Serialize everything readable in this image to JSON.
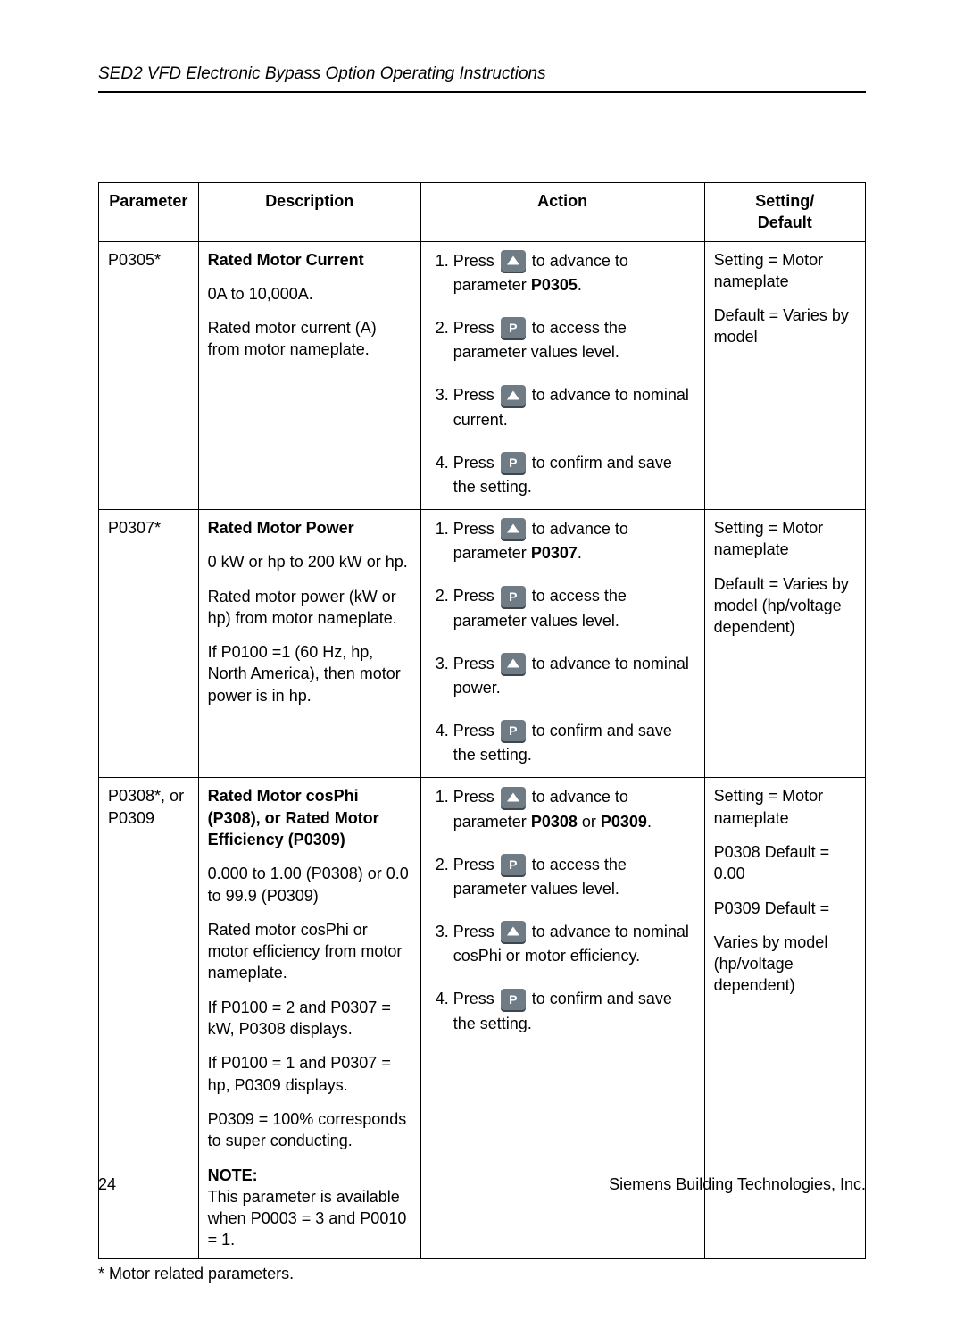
{
  "header": {
    "title": "SED2 VFD Electronic Bypass Option Operating Instructions"
  },
  "table": {
    "columns": [
      "Parameter",
      "Description",
      "Action",
      "Setting/\nDefault"
    ],
    "rows": [
      {
        "parameter": "P0305*",
        "description": {
          "title": "Rated Motor Current",
          "paras": [
            "0A to 10,000A.",
            "Rated motor current (A) from motor nameplate."
          ],
          "note": null
        },
        "actions": [
          {
            "num": "1.",
            "pre": "Press ",
            "btn": "up",
            "post": " to advance to parameter ",
            "bold": "P0305",
            "tail": "."
          },
          {
            "num": "2.",
            "pre": "Press ",
            "btn": "p",
            "post": " to access the parameter values level.",
            "bold": null,
            "tail": ""
          },
          {
            "num": "3.",
            "pre": "Press ",
            "btn": "up",
            "post": " to advance to nominal current.",
            "bold": null,
            "tail": ""
          },
          {
            "num": "4.",
            "pre": "Press ",
            "btn": "p",
            "post": " to confirm and save the setting.",
            "bold": null,
            "tail": ""
          }
        ],
        "setting": [
          "Setting = Motor nameplate",
          "Default = Varies by model"
        ]
      },
      {
        "parameter": "P0307*",
        "description": {
          "title": "Rated Motor Power",
          "paras": [
            "0 kW or hp to 200 kW or hp.",
            "Rated motor power (kW or hp) from motor nameplate.",
            "If P0100 =1 (60 Hz, hp, North America), then motor power is in hp."
          ],
          "note": null
        },
        "actions": [
          {
            "num": "1.",
            "pre": "Press ",
            "btn": "up",
            "post": " to advance to parameter ",
            "bold": "P0307",
            "tail": "."
          },
          {
            "num": "2.",
            "pre": "Press ",
            "btn": "p",
            "post": " to access the parameter values level.",
            "bold": null,
            "tail": ""
          },
          {
            "num": "3.",
            "pre": "Press ",
            "btn": "up",
            "post": " to advance to nominal power.",
            "bold": null,
            "tail": ""
          },
          {
            "num": "4.",
            "pre": "Press ",
            "btn": "p",
            "post": " to confirm and save the setting.",
            "bold": null,
            "tail": ""
          }
        ],
        "setting": [
          "Setting = Motor nameplate",
          "Default = Varies by model (hp/voltage dependent)"
        ]
      },
      {
        "parameter": "P0308*, or P0309",
        "description": {
          "title": "Rated Motor cosPhi (P308), or Rated Motor Efficiency (P0309)",
          "paras": [
            "0.000 to 1.00 (P0308) or 0.0 to 99.9 (P0309)",
            "Rated motor cosPhi or motor efficiency from motor nameplate.",
            "If P0100 = 2 and P0307 = kW, P0308 displays.",
            "If P0100 = 1 and P0307 = hp, P0309 displays.",
            "P0309 = 100% corresponds to super conducting."
          ],
          "note": {
            "label": "NOTE:",
            "text": "This parameter is available when P0003 = 3 and P0010 = 1."
          }
        },
        "actions": [
          {
            "num": "1.",
            "pre": "Press ",
            "btn": "up",
            "post": " to advance to parameter ",
            "bold": "P0308",
            "tail": " or ",
            "bold2": "P0309",
            "tail2": "."
          },
          {
            "num": "2",
            "pre": "Press ",
            "btn": "p",
            "post": " to access the parameter values level.",
            "bold": null,
            "tail": ""
          },
          {
            "num": "3.",
            "pre": "Press ",
            "btn": "up",
            "post": " to advance to nominal cosPhi or motor efficiency.",
            "bold": null,
            "tail": ""
          },
          {
            "num": "4.",
            "pre": "Press ",
            "btn": "p",
            "post": " to confirm and save the setting.",
            "bold": null,
            "tail": ""
          }
        ],
        "setting": [
          "Setting = Motor nameplate",
          "P0308 Default = 0.00",
          "P0309 Default =",
          "Varies by model (hp/voltage dependent)"
        ]
      }
    ]
  },
  "footnote": "* Motor related parameters.",
  "footer": {
    "page": "24",
    "org": "Siemens Building Technologies, Inc."
  },
  "colors": {
    "button_bg": "#6f7b85",
    "button_shadow": "#3e464d",
    "text": "#000000",
    "page_bg": "#ffffff"
  }
}
